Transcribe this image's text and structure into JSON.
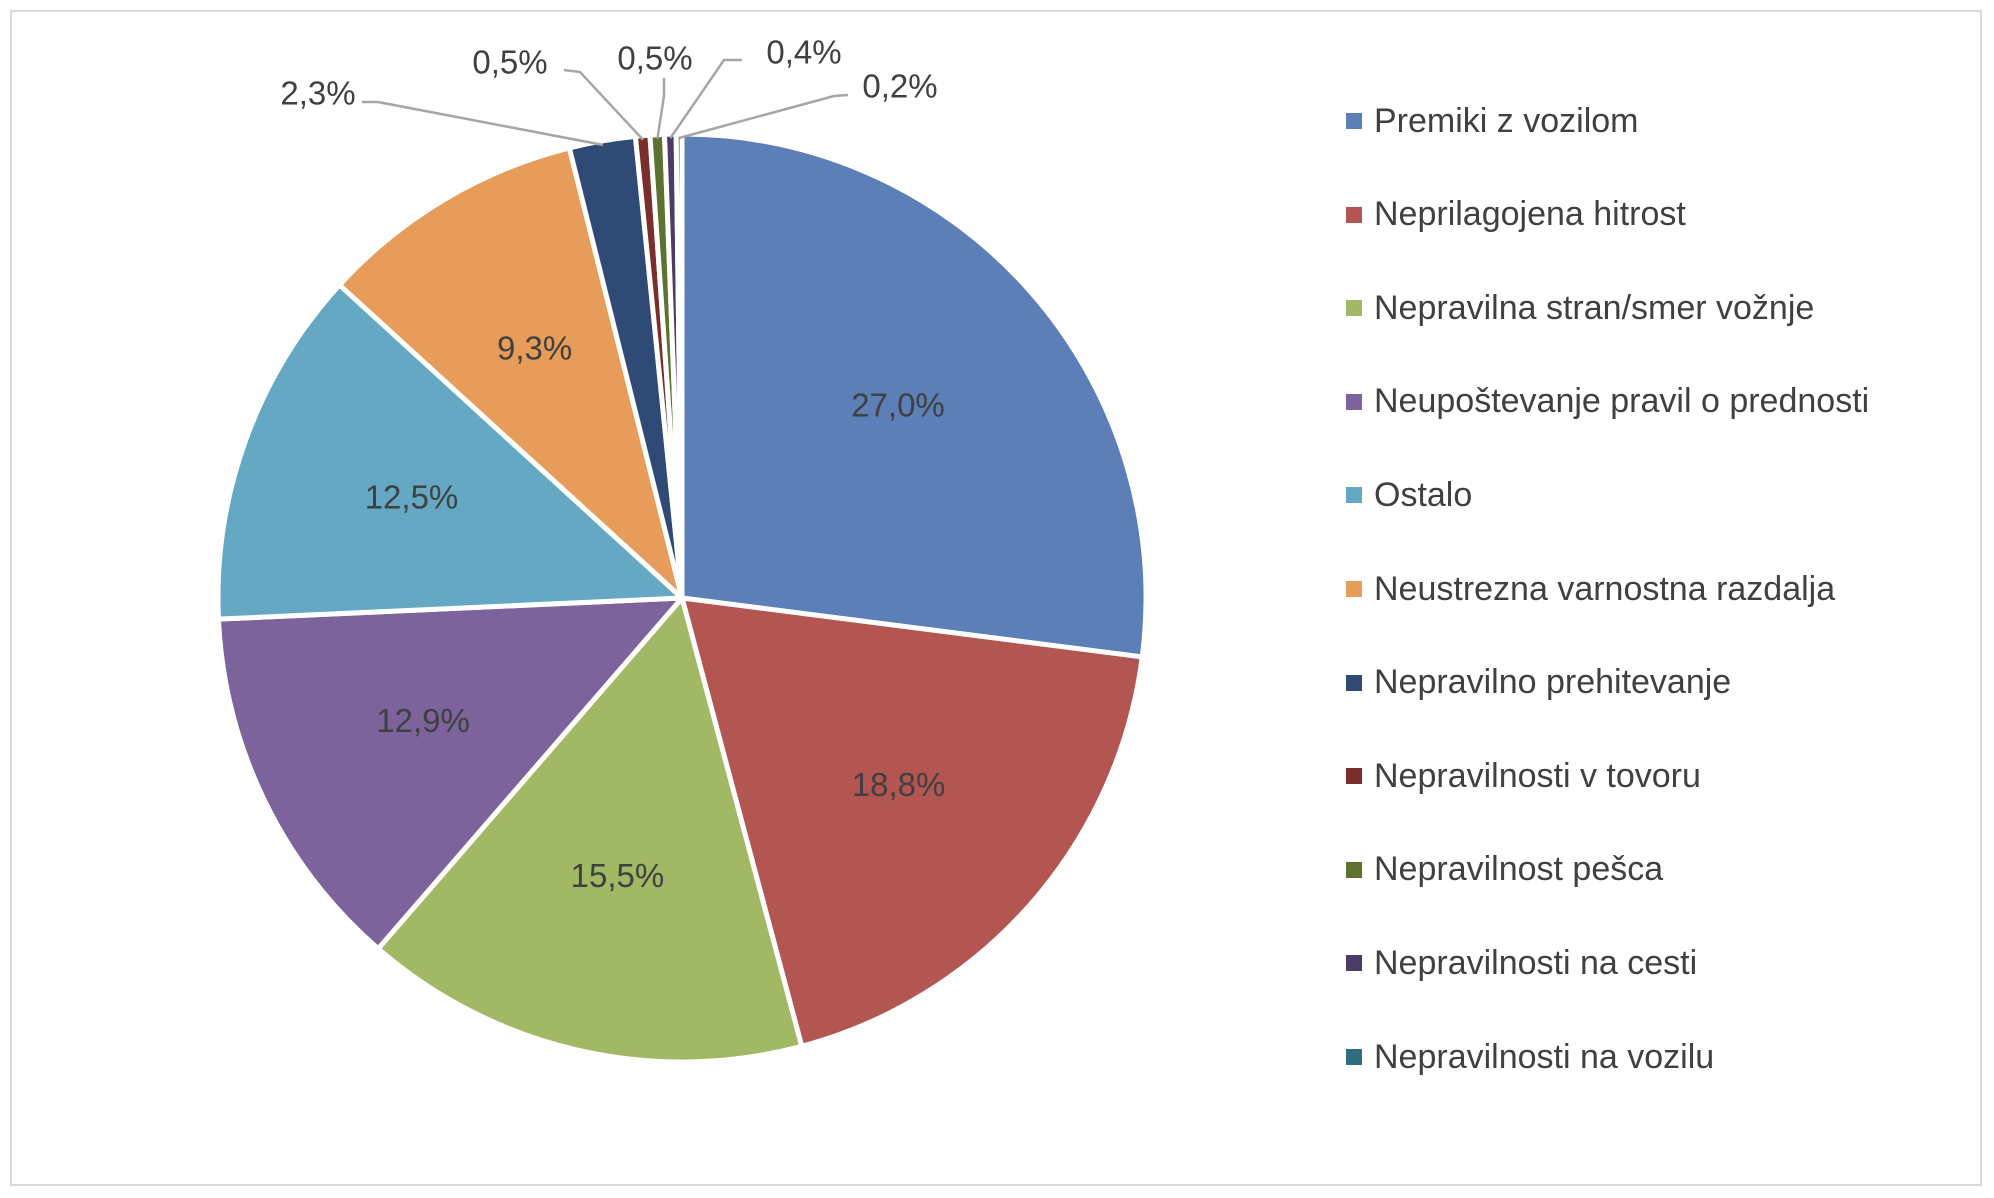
{
  "chart_data": {
    "type": "pie",
    "title": "",
    "legend_position": "right",
    "series": [
      {
        "name": "Premiki z vozilom",
        "value": 27.0,
        "label": "27,0%",
        "color": "#5b7fb6"
      },
      {
        "name": "Neprilagojena hitrost",
        "value": 18.8,
        "label": "18,8%",
        "color": "#b35651"
      },
      {
        "name": "Nepravilna stran/smer vožnje",
        "value": 15.5,
        "label": "15,5%",
        "color": "#a1b964"
      },
      {
        "name": "Neupoštevanje pravil o prednosti",
        "value": 12.9,
        "label": "12,9%",
        "color": "#7c639c"
      },
      {
        "name": "Ostalo",
        "value": 12.5,
        "label": "12,5%",
        "color": "#65a8c3"
      },
      {
        "name": "Neustrezna varnostna razdalja",
        "value": 9.3,
        "label": "9,3%",
        "color": "#e89c59"
      },
      {
        "name": "Nepravilno prehitevanje",
        "value": 2.3,
        "label": "2,3%",
        "color": "#2f4a74"
      },
      {
        "name": "Nepravilnosti v tovoru",
        "value": 0.5,
        "label": "0,5%",
        "color": "#7a2e2b"
      },
      {
        "name": "Nepravilnost pešca",
        "value": 0.5,
        "label": "0,5%",
        "color": "#5d7230"
      },
      {
        "name": "Nepravilnosti na cesti",
        "value": 0.4,
        "label": "0,4%",
        "color": "#4c3b66"
      },
      {
        "name": "Nepravilnosti na vozilu",
        "value": 0.2,
        "label": "0,2%",
        "color": "#2f6e82"
      }
    ]
  }
}
